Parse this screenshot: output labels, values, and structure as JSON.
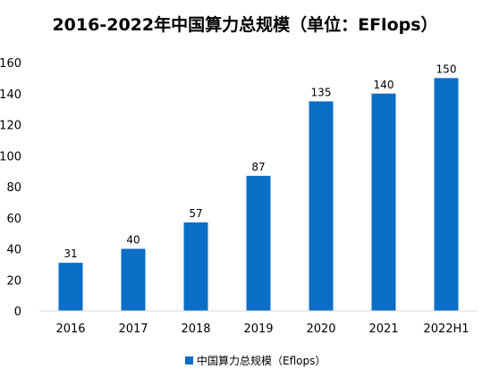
{
  "chart_data": {
    "type": "bar",
    "title": "2016-2022年中国算力总规模（单位：EFlops）",
    "categories": [
      "2016",
      "2017",
      "2018",
      "2019",
      "2020",
      "2021",
      "2022H1"
    ],
    "series": [
      {
        "name": "中国算力总规模（Eflops）",
        "values": [
          31,
          40,
          57,
          87,
          135,
          140,
          150
        ],
        "color": "#0a6ec6"
      }
    ],
    "xlabel": "",
    "ylabel": "",
    "ylim": [
      0,
      160
    ],
    "yticks": [
      0,
      20,
      40,
      60,
      80,
      100,
      120,
      140,
      160
    ],
    "grid": false,
    "legend_position": "bottom-center",
    "data_labels": true
  }
}
